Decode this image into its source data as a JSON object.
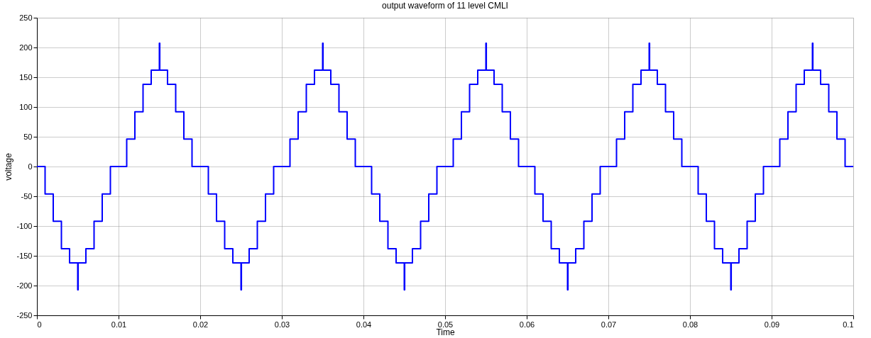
{
  "chart_data": {
    "type": "step",
    "title": "output waveform of 11 level CMLI",
    "xlabel": "Time",
    "ylabel": "voltage",
    "series": [
      {
        "color": "#0000ff",
        "x": [
          0,
          0.001,
          0.002,
          0.003,
          0.004,
          0.005,
          0.00505,
          0.006,
          0.007,
          0.008,
          0.009,
          0.011,
          0.012,
          0.013,
          0.014,
          0.015,
          0.01505,
          0.016,
          0.017,
          0.018,
          0.019,
          0.02,
          0.021,
          0.022,
          0.023,
          0.024,
          0.025,
          0.02505,
          0.026,
          0.027,
          0.028,
          0.029,
          0.031,
          0.032,
          0.033,
          0.034,
          0.035,
          0.03505,
          0.036,
          0.037,
          0.038,
          0.039,
          0.04,
          0.041,
          0.042,
          0.043,
          0.044,
          0.045,
          0.04505,
          0.046,
          0.047,
          0.048,
          0.049,
          0.051,
          0.052,
          0.053,
          0.054,
          0.055,
          0.05505,
          0.056,
          0.057,
          0.058,
          0.059,
          0.06,
          0.061,
          0.062,
          0.063,
          0.064,
          0.065,
          0.06505,
          0.066,
          0.067,
          0.068,
          0.069,
          0.071,
          0.072,
          0.073,
          0.074,
          0.075,
          0.07505,
          0.076,
          0.077,
          0.078,
          0.079,
          0.08,
          0.081,
          0.082,
          0.083,
          0.084,
          0.085,
          0.08505,
          0.086,
          0.087,
          0.088,
          0.089,
          0.091,
          0.092,
          0.093,
          0.094,
          0.095,
          0.09505,
          0.096,
          0.097,
          0.098,
          0.099,
          0.1
        ],
        "values": [
          0,
          -46,
          -92,
          -138,
          -162,
          -207,
          -162,
          -138,
          -92,
          -46,
          0,
          46,
          92,
          138,
          162,
          207,
          162,
          138,
          92,
          46,
          0,
          0,
          -46,
          -92,
          -138,
          -162,
          -207,
          -162,
          -138,
          -92,
          -46,
          0,
          46,
          92,
          138,
          162,
          207,
          162,
          138,
          92,
          46,
          0,
          0,
          -46,
          -92,
          -138,
          -162,
          -207,
          -162,
          -138,
          -92,
          -46,
          0,
          46,
          92,
          138,
          162,
          207,
          162,
          138,
          92,
          46,
          0,
          0,
          -46,
          -92,
          -138,
          -162,
          -207,
          -162,
          -138,
          -92,
          -46,
          0,
          46,
          92,
          138,
          162,
          207,
          162,
          138,
          92,
          46,
          0,
          0,
          -46,
          -92,
          -138,
          -162,
          -207,
          -162,
          -138,
          -92,
          -46,
          0,
          46,
          92,
          138,
          162,
          207,
          162,
          138,
          92,
          46,
          0,
          0
        ]
      }
    ],
    "xlim": [
      0,
      0.1
    ],
    "xticks": [
      0,
      0.01,
      0.02,
      0.03,
      0.04,
      0.05,
      0.06,
      0.07,
      0.08,
      0.09,
      0.1
    ],
    "ylim": [
      -250,
      250
    ],
    "yticks": [
      -250,
      -200,
      -150,
      -100,
      -50,
      0,
      50,
      100,
      150,
      200,
      250
    ],
    "grid": true,
    "marker": "none",
    "line_style": "solid"
  }
}
